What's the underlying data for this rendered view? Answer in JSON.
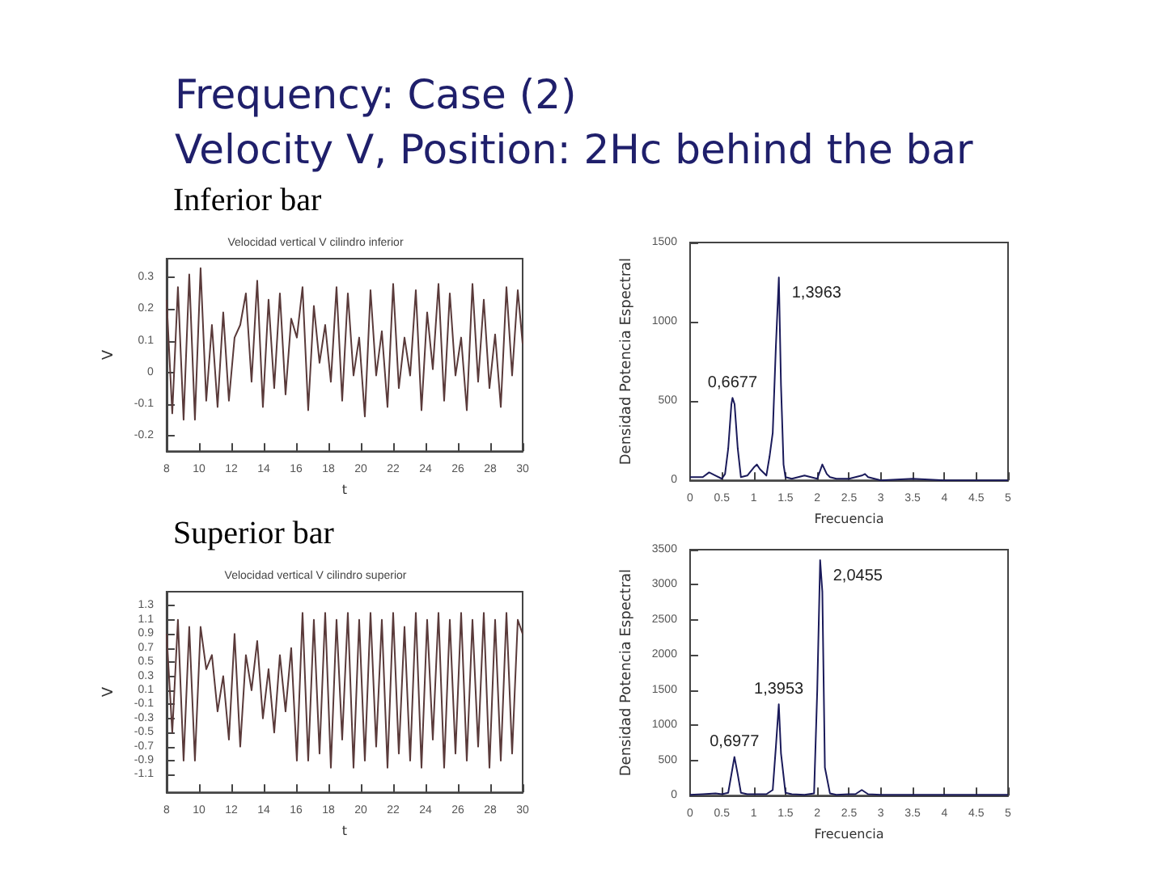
{
  "chart_data": [
    {
      "type": "other",
      "title": "Frequency: Case (2)",
      "subtitle": "Velocity V, Position: 2Hc behind the bar"
    },
    {
      "type": "line",
      "title": "Velocidad vertical V cilindro inferior",
      "annotations": [
        "Inferior bar"
      ],
      "xlabel": "t",
      "ylabel": "V",
      "color": "#5a3a3a",
      "marker": "none",
      "x": [
        8.0,
        8.35,
        8.7,
        9.05,
        9.4,
        9.75,
        10.1,
        10.45,
        10.8,
        11.15,
        11.5,
        11.85,
        12.2,
        12.55,
        12.9,
        13.25,
        13.6,
        13.95,
        14.3,
        14.65,
        15.0,
        15.35,
        15.7,
        16.05,
        16.4,
        16.75,
        17.1,
        17.45,
        17.8,
        18.15,
        18.5,
        18.85,
        19.2,
        19.55,
        19.9,
        20.25,
        20.6,
        20.95,
        21.3,
        21.65,
        22.0,
        22.35,
        22.7,
        23.05,
        23.4,
        23.75,
        24.1,
        24.45,
        24.8,
        25.15,
        25.5,
        25.85,
        26.2,
        26.55,
        26.9,
        27.25,
        27.6,
        27.95,
        28.3,
        28.65,
        29.0,
        29.35,
        29.7,
        30.0
      ],
      "values": [
        0.23,
        -0.13,
        0.27,
        -0.15,
        0.31,
        -0.15,
        0.33,
        -0.09,
        0.15,
        -0.11,
        0.19,
        -0.09,
        0.11,
        0.15,
        0.25,
        -0.03,
        0.29,
        -0.11,
        0.23,
        -0.05,
        0.25,
        -0.07,
        0.17,
        0.11,
        0.27,
        -0.12,
        0.21,
        0.03,
        0.15,
        -0.03,
        0.27,
        -0.09,
        0.25,
        -0.01,
        0.11,
        -0.14,
        0.26,
        -0.01,
        0.13,
        -0.11,
        0.28,
        -0.05,
        0.11,
        -0.01,
        0.26,
        -0.12,
        0.19,
        0.01,
        0.28,
        -0.09,
        0.25,
        -0.01,
        0.11,
        -0.12,
        0.28,
        -0.03,
        0.23,
        -0.05,
        0.12,
        -0.11,
        0.27,
        -0.01,
        0.26,
        0.09
      ],
      "xlim": [
        8,
        30
      ],
      "xticks": [
        8,
        10,
        12,
        14,
        16,
        18,
        20,
        22,
        24,
        26,
        28,
        30
      ],
      "ylim": [
        -0.25,
        0.36
      ],
      "yticks": [
        -0.2,
        -0.1,
        0,
        0.1,
        0.2,
        0.3
      ]
    },
    {
      "type": "line",
      "xlabel": "Frecuencia",
      "ylabel": "Densidad Potencia Espectral",
      "color": "#1a1a5a",
      "marker": "none",
      "x": [
        0,
        0.1,
        0.2,
        0.3,
        0.4,
        0.5,
        0.55,
        0.6,
        0.65,
        0.6677,
        0.7,
        0.75,
        0.8,
        0.9,
        1.0,
        1.05,
        1.1,
        1.2,
        1.25,
        1.3,
        1.35,
        1.3963,
        1.43,
        1.47,
        1.5,
        1.6,
        1.7,
        1.8,
        1.9,
        2.0,
        2.08,
        2.15,
        2.2,
        2.3,
        2.4,
        2.5,
        2.6,
        2.7,
        2.75,
        2.8,
        2.9,
        3.0,
        3.5,
        4.0,
        4.5,
        5.0
      ],
      "values": [
        20,
        20,
        20,
        50,
        30,
        10,
        40,
        200,
        480,
        520,
        480,
        200,
        20,
        30,
        80,
        100,
        70,
        30,
        150,
        300,
        850,
        1280,
        600,
        100,
        20,
        10,
        20,
        30,
        20,
        10,
        100,
        40,
        20,
        10,
        10,
        10,
        20,
        30,
        40,
        20,
        10,
        0,
        10,
        0,
        0,
        0
      ],
      "annotations": [
        {
          "text": "0,6677",
          "x": 0.6677,
          "y": 520
        },
        {
          "text": "1,3963",
          "x": 1.3963,
          "y": 1280
        }
      ],
      "xlim": [
        0,
        5
      ],
      "xticks": [
        0,
        0.5,
        1,
        1.5,
        2,
        2.5,
        3,
        3.5,
        4,
        4.5,
        5
      ],
      "ylim": [
        0,
        1500
      ],
      "yticks": [
        0,
        500,
        1000,
        1500
      ]
    },
    {
      "type": "line",
      "title": "Velocidad vertical V cilindro superior",
      "annotations": [
        "Superior bar"
      ],
      "xlabel": "t",
      "ylabel": "V",
      "color": "#5a3a3a",
      "marker": "none",
      "x": [
        8.0,
        8.35,
        8.7,
        9.05,
        9.4,
        9.75,
        10.1,
        10.45,
        10.8,
        11.15,
        11.5,
        11.85,
        12.2,
        12.55,
        12.9,
        13.25,
        13.6,
        13.95,
        14.3,
        14.65,
        15.0,
        15.35,
        15.7,
        16.05,
        16.4,
        16.75,
        17.1,
        17.45,
        17.8,
        18.15,
        18.5,
        18.85,
        19.2,
        19.55,
        19.9,
        20.25,
        20.6,
        20.95,
        21.3,
        21.65,
        22.0,
        22.35,
        22.7,
        23.05,
        23.4,
        23.75,
        24.1,
        24.45,
        24.8,
        25.15,
        25.5,
        25.85,
        26.2,
        26.55,
        26.9,
        27.25,
        27.6,
        27.95,
        28.3,
        28.65,
        29.0,
        29.35,
        29.7,
        30.0
      ],
      "values": [
        0.9,
        -0.5,
        1.1,
        -0.9,
        1.0,
        -0.9,
        1.0,
        0.4,
        0.6,
        -0.2,
        0.3,
        -0.6,
        0.9,
        -0.7,
        0.6,
        0.1,
        0.8,
        -0.3,
        0.4,
        -0.5,
        0.6,
        -0.2,
        0.7,
        -0.9,
        1.2,
        -0.9,
        1.1,
        -0.8,
        1.2,
        -1.0,
        1.1,
        -0.6,
        1.2,
        -1.0,
        1.1,
        -0.9,
        1.2,
        -0.7,
        1.1,
        -1.0,
        1.2,
        -0.8,
        1.0,
        -0.9,
        1.2,
        -1.0,
        1.1,
        -0.6,
        1.2,
        -1.0,
        1.1,
        -0.8,
        1.2,
        -0.9,
        1.1,
        -0.7,
        1.2,
        -1.0,
        1.1,
        -0.9,
        1.2,
        -0.8,
        1.1,
        0.9
      ],
      "xlim": [
        8,
        30
      ],
      "xticks": [
        8,
        10,
        12,
        14,
        16,
        18,
        20,
        22,
        24,
        26,
        28,
        30
      ],
      "ylim": [
        -1.35,
        1.5
      ],
      "yticks": [
        -1.1,
        -0.9,
        -0.7,
        -0.5,
        -0.3,
        -0.1,
        0.1,
        0.3,
        0.5,
        0.7,
        0.9,
        1.1,
        1.3
      ]
    },
    {
      "type": "line",
      "xlabel": "Frecuencia",
      "ylabel": "Densidad Potencia Espectral",
      "color": "#1a1a5a",
      "marker": "none",
      "x": [
        0,
        0.2,
        0.4,
        0.5,
        0.6,
        0.65,
        0.6977,
        0.75,
        0.8,
        0.9,
        1.0,
        1.1,
        1.2,
        1.3,
        1.35,
        1.3953,
        1.43,
        1.5,
        1.6,
        1.8,
        1.95,
        2.0,
        2.0455,
        2.08,
        2.12,
        2.2,
        2.3,
        2.5,
        2.6,
        2.7,
        2.8,
        3.0,
        3.5,
        4.0,
        4.5,
        5.0
      ],
      "values": [
        10,
        20,
        30,
        20,
        40,
        300,
        550,
        300,
        40,
        20,
        20,
        20,
        20,
        80,
        700,
        1300,
        600,
        40,
        20,
        10,
        30,
        1500,
        3350,
        2900,
        400,
        30,
        10,
        20,
        20,
        80,
        20,
        10,
        10,
        10,
        10,
        10
      ],
      "annotations": [
        {
          "text": "0,6977",
          "x": 0.6977,
          "y": 550
        },
        {
          "text": "1,3953",
          "x": 1.3953,
          "y": 1300
        },
        {
          "text": "2,0455",
          "x": 2.0455,
          "y": 3350
        }
      ],
      "xlim": [
        0,
        5
      ],
      "xticks": [
        0,
        0.5,
        1,
        1.5,
        2,
        2.5,
        3,
        3.5,
        4,
        4.5,
        5
      ],
      "ylim": [
        0,
        3500
      ],
      "yticks": [
        0,
        500,
        1000,
        1500,
        2000,
        2500,
        3000,
        3500
      ]
    }
  ]
}
